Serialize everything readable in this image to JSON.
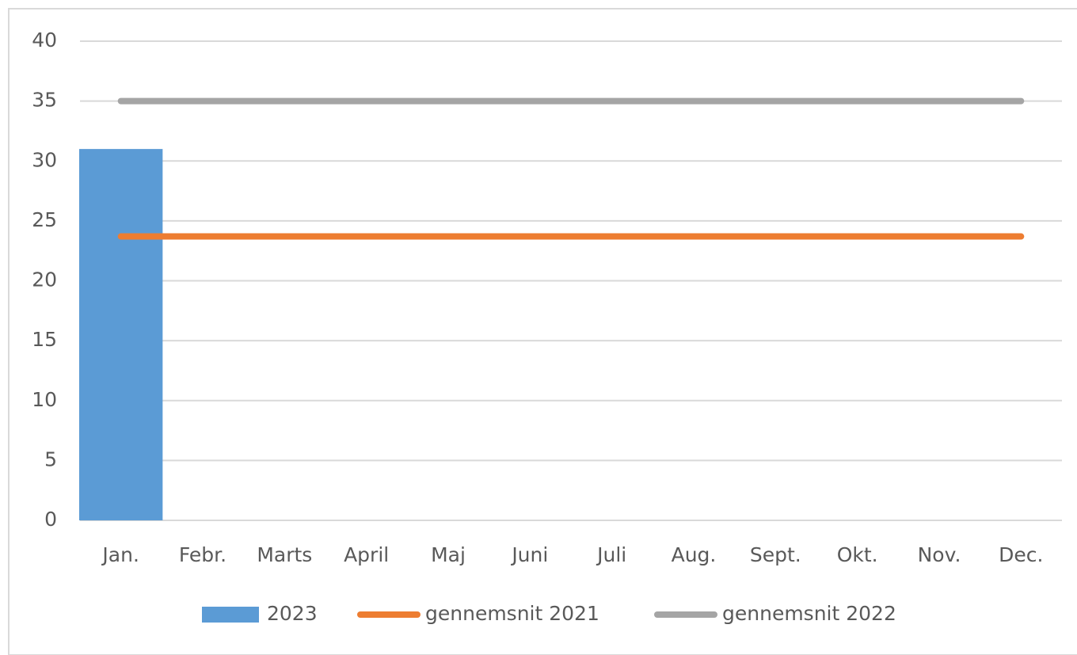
{
  "chart_data": {
    "type": "bar",
    "categories": [
      "Jan.",
      "Febr.",
      "Marts",
      "April",
      "Maj",
      "Juni",
      "Juli",
      "Aug.",
      "Sept.",
      "Okt.",
      "Nov.",
      "Dec."
    ],
    "series": [
      {
        "name": "2023",
        "type": "bar",
        "color": "#5b9bd5",
        "values": [
          31,
          null,
          null,
          null,
          null,
          null,
          null,
          null,
          null,
          null,
          null,
          null
        ]
      },
      {
        "name": "gennemsnit 2021",
        "type": "line",
        "color": "#ed7d31",
        "values": [
          23.7,
          23.7,
          23.7,
          23.7,
          23.7,
          23.7,
          23.7,
          23.7,
          23.7,
          23.7,
          23.7,
          23.7
        ]
      },
      {
        "name": "gennemsnit 2022",
        "type": "line",
        "color": "#a5a5a5",
        "values": [
          35,
          35,
          35,
          35,
          35,
          35,
          35,
          35,
          35,
          35,
          35,
          35
        ]
      }
    ],
    "ylim": [
      0,
      40
    ],
    "yticks": [
      0,
      5,
      10,
      15,
      20,
      25,
      30,
      35,
      40
    ],
    "grid": true,
    "legend": "bottom"
  }
}
